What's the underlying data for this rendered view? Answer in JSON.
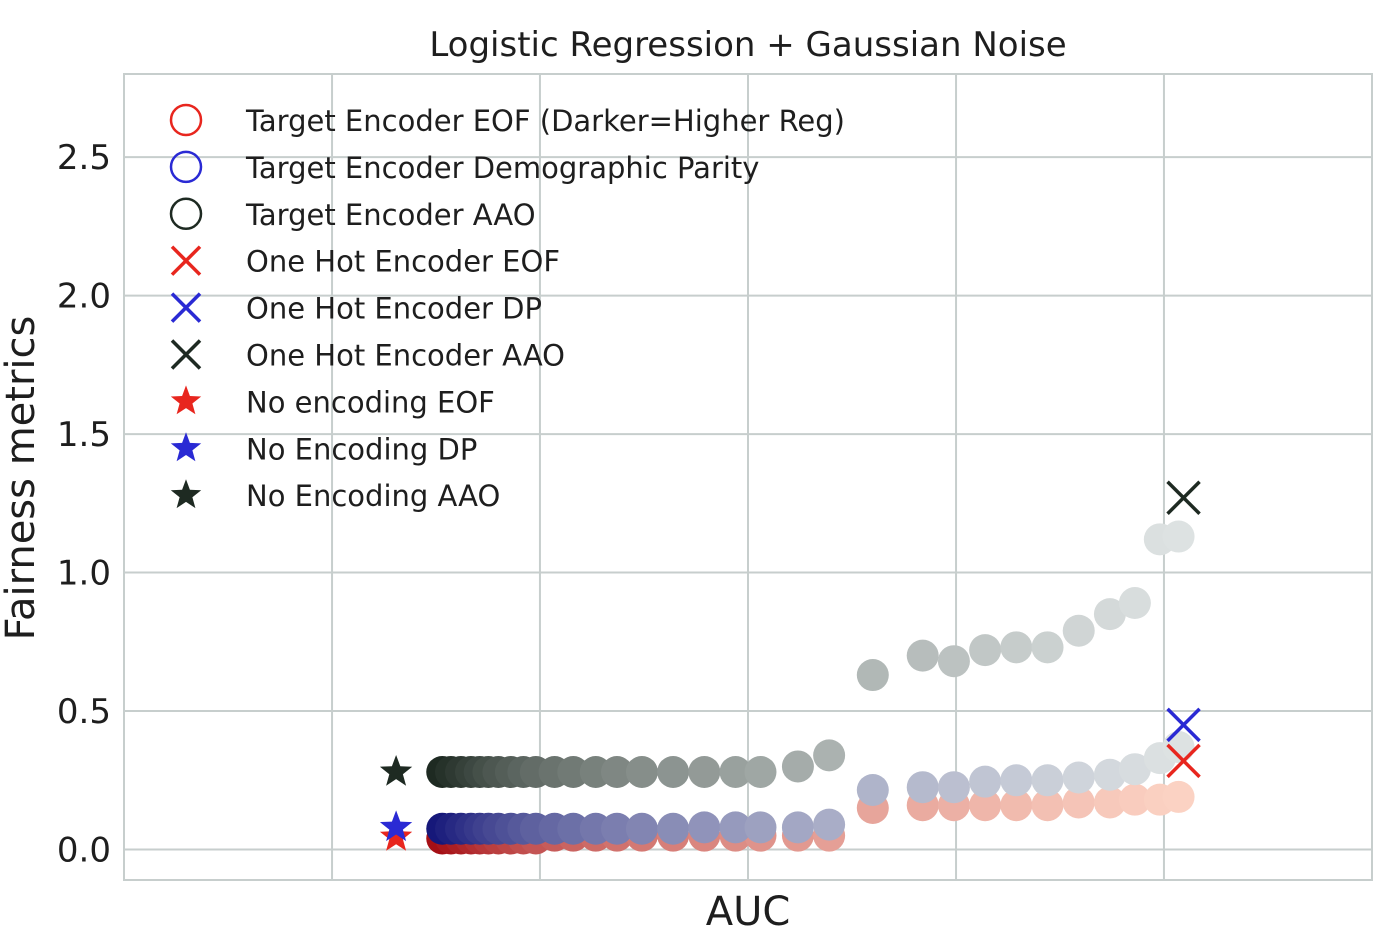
{
  "chart_data": {
    "type": "scatter",
    "title": "Logistic Regression + Gaussian Noise",
    "xlabel": "AUC",
    "ylabel": "Fairness metrics",
    "xlim": [
      0.0,
      1.0
    ],
    "ylim": [
      -0.11,
      2.8
    ],
    "x_grid_ticks": [
      0.1667,
      0.3333,
      0.5,
      0.6667,
      0.8333,
      1.0
    ],
    "x_tick_labels_shown": false,
    "yticks": [
      0.0,
      0.5,
      1.0,
      1.5,
      2.0,
      2.5
    ],
    "ytick_labels": [
      "0.0",
      "0.5",
      "1.0",
      "1.5",
      "2.0",
      "2.5"
    ],
    "grid": true,
    "legend_position": "top-left",
    "colors": {
      "eof": "#e8261e",
      "dp": "#2a2ad4",
      "aao": "#1e2a22",
      "grid": "#c7cecd",
      "frame": "#c7cecd"
    },
    "legend": [
      {
        "label": "Target Encoder EOF (Darker=Higher Reg)",
        "marker": "circle",
        "color": "#e8261e"
      },
      {
        "label": "Target Encoder Demographic Parity",
        "marker": "circle",
        "color": "#2a2ad4"
      },
      {
        "label": "Target Encoder AAO",
        "marker": "circle",
        "color": "#1e2a22"
      },
      {
        "label": "One Hot Encoder EOF",
        "marker": "x",
        "color": "#e8261e"
      },
      {
        "label": "One Hot Encoder DP",
        "marker": "x",
        "color": "#2a2ad4"
      },
      {
        "label": "One Hot Encoder AAO",
        "marker": "x",
        "color": "#1e2a22"
      },
      {
        "label": "No encoding EOF",
        "marker": "star",
        "color": "#e8261e"
      },
      {
        "label": "No Encoding DP",
        "marker": "star",
        "color": "#2a2ad4"
      },
      {
        "label": "No Encoding AAO",
        "marker": "star",
        "color": "#1e2a22"
      }
    ],
    "series": [
      {
        "name": "Target Encoder EOF (Darker=Higher Reg)",
        "marker": "circle",
        "color_light": "#fbd2c3",
        "color_dark": "#a50f15",
        "points": [
          [
            0.255,
            0.04
          ],
          [
            0.262,
            0.04
          ],
          [
            0.27,
            0.04
          ],
          [
            0.278,
            0.04
          ],
          [
            0.285,
            0.04
          ],
          [
            0.292,
            0.04
          ],
          [
            0.3,
            0.04
          ],
          [
            0.31,
            0.04
          ],
          [
            0.32,
            0.04
          ],
          [
            0.33,
            0.04
          ],
          [
            0.345,
            0.05
          ],
          [
            0.36,
            0.05
          ],
          [
            0.378,
            0.05
          ],
          [
            0.395,
            0.05
          ],
          [
            0.415,
            0.05
          ],
          [
            0.44,
            0.05
          ],
          [
            0.465,
            0.05
          ],
          [
            0.49,
            0.05
          ],
          [
            0.51,
            0.05
          ],
          [
            0.54,
            0.05
          ],
          [
            0.565,
            0.05
          ],
          [
            0.6,
            0.15
          ],
          [
            0.64,
            0.16
          ],
          [
            0.665,
            0.16
          ],
          [
            0.69,
            0.16
          ],
          [
            0.715,
            0.16
          ],
          [
            0.74,
            0.16
          ],
          [
            0.765,
            0.17
          ],
          [
            0.79,
            0.17
          ],
          [
            0.81,
            0.18
          ],
          [
            0.83,
            0.18
          ],
          [
            0.845,
            0.19
          ]
        ]
      },
      {
        "name": "Target Encoder Demographic Parity",
        "marker": "circle",
        "color_light": "#dde2e2",
        "color_dark": "#16187a",
        "points": [
          [
            0.255,
            0.075
          ],
          [
            0.262,
            0.075
          ],
          [
            0.27,
            0.075
          ],
          [
            0.278,
            0.075
          ],
          [
            0.285,
            0.075
          ],
          [
            0.292,
            0.075
          ],
          [
            0.3,
            0.075
          ],
          [
            0.31,
            0.075
          ],
          [
            0.32,
            0.075
          ],
          [
            0.33,
            0.075
          ],
          [
            0.345,
            0.075
          ],
          [
            0.36,
            0.075
          ],
          [
            0.378,
            0.075
          ],
          [
            0.395,
            0.075
          ],
          [
            0.415,
            0.075
          ],
          [
            0.44,
            0.075
          ],
          [
            0.465,
            0.08
          ],
          [
            0.49,
            0.08
          ],
          [
            0.51,
            0.08
          ],
          [
            0.54,
            0.08
          ],
          [
            0.565,
            0.09
          ],
          [
            0.6,
            0.215
          ],
          [
            0.64,
            0.225
          ],
          [
            0.665,
            0.225
          ],
          [
            0.69,
            0.245
          ],
          [
            0.715,
            0.25
          ],
          [
            0.74,
            0.25
          ],
          [
            0.765,
            0.26
          ],
          [
            0.79,
            0.27
          ],
          [
            0.81,
            0.29
          ],
          [
            0.83,
            0.33
          ],
          [
            0.845,
            0.37
          ]
        ]
      },
      {
        "name": "Target Encoder AAO",
        "marker": "circle",
        "color_light": "#dde2e2",
        "color_dark": "#1e2a22",
        "points": [
          [
            0.255,
            0.28
          ],
          [
            0.262,
            0.28
          ],
          [
            0.27,
            0.28
          ],
          [
            0.278,
            0.28
          ],
          [
            0.285,
            0.28
          ],
          [
            0.292,
            0.28
          ],
          [
            0.3,
            0.28
          ],
          [
            0.31,
            0.28
          ],
          [
            0.32,
            0.28
          ],
          [
            0.33,
            0.28
          ],
          [
            0.345,
            0.28
          ],
          [
            0.36,
            0.28
          ],
          [
            0.378,
            0.28
          ],
          [
            0.395,
            0.28
          ],
          [
            0.415,
            0.28
          ],
          [
            0.44,
            0.28
          ],
          [
            0.465,
            0.28
          ],
          [
            0.49,
            0.28
          ],
          [
            0.51,
            0.28
          ],
          [
            0.54,
            0.3
          ],
          [
            0.565,
            0.34
          ],
          [
            0.6,
            0.63
          ],
          [
            0.64,
            0.7
          ],
          [
            0.665,
            0.68
          ],
          [
            0.69,
            0.72
          ],
          [
            0.715,
            0.73
          ],
          [
            0.74,
            0.73
          ],
          [
            0.765,
            0.79
          ],
          [
            0.79,
            0.85
          ],
          [
            0.81,
            0.89
          ],
          [
            0.83,
            1.12
          ],
          [
            0.845,
            1.13
          ]
        ]
      },
      {
        "name": "One Hot Encoder EOF",
        "marker": "x",
        "color": "#e8261e",
        "points": [
          [
            0.849,
            0.32
          ]
        ]
      },
      {
        "name": "One Hot Encoder DP",
        "marker": "x",
        "color": "#2a2ad4",
        "points": [
          [
            0.849,
            0.45
          ]
        ]
      },
      {
        "name": "One Hot Encoder AAO",
        "marker": "x",
        "color": "#1e2a22",
        "points": [
          [
            0.849,
            1.27
          ]
        ]
      },
      {
        "name": "No encoding EOF",
        "marker": "star",
        "color": "#e8261e",
        "points": [
          [
            0.218,
            0.045
          ]
        ]
      },
      {
        "name": "No Encoding DP",
        "marker": "star",
        "color": "#2a2ad4",
        "points": [
          [
            0.218,
            0.08
          ]
        ]
      },
      {
        "name": "No Encoding AAO",
        "marker": "star",
        "color": "#1e2a22",
        "points": [
          [
            0.218,
            0.28
          ]
        ]
      }
    ]
  }
}
